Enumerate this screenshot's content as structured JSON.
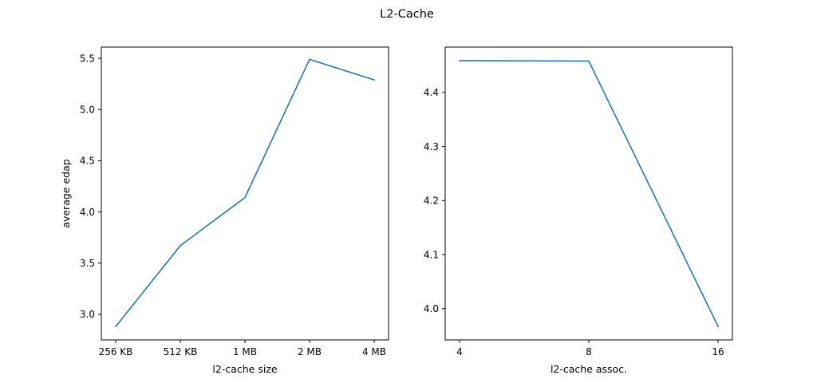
{
  "figure_title": "L2-Cache",
  "chart_data": [
    {
      "type": "line",
      "title": "",
      "xlabel": "l2-cache size",
      "ylabel": "average edap",
      "categories": [
        "256 KB",
        "512 KB",
        "1 MB",
        "2 MB",
        "4 MB"
      ],
      "series": [
        {
          "values": [
            2.88,
            3.67,
            4.14,
            5.49,
            5.29
          ]
        }
      ],
      "ylim": [
        2.75,
        5.61
      ],
      "yticks": [
        3.0,
        3.5,
        4.0,
        4.5,
        5.0,
        5.5
      ],
      "ytick_labels": [
        "3.0",
        "3.5",
        "4.0",
        "4.5",
        "5.0",
        "5.5"
      ],
      "grid": false,
      "line_color": "#1f77b4"
    },
    {
      "type": "line",
      "title": "",
      "xlabel": "l2-cache assoc.",
      "ylabel": "",
      "categories": [
        "4",
        "8",
        "16"
      ],
      "series": [
        {
          "values": [
            4.459,
            4.458,
            3.967
          ]
        }
      ],
      "ylim": [
        3.942,
        4.484
      ],
      "yticks": [
        4.0,
        4.1,
        4.2,
        4.3,
        4.4
      ],
      "ytick_labels": [
        "4.0",
        "4.1",
        "4.2",
        "4.3",
        "4.4"
      ],
      "grid": false,
      "line_color": "#1f77b4"
    }
  ]
}
